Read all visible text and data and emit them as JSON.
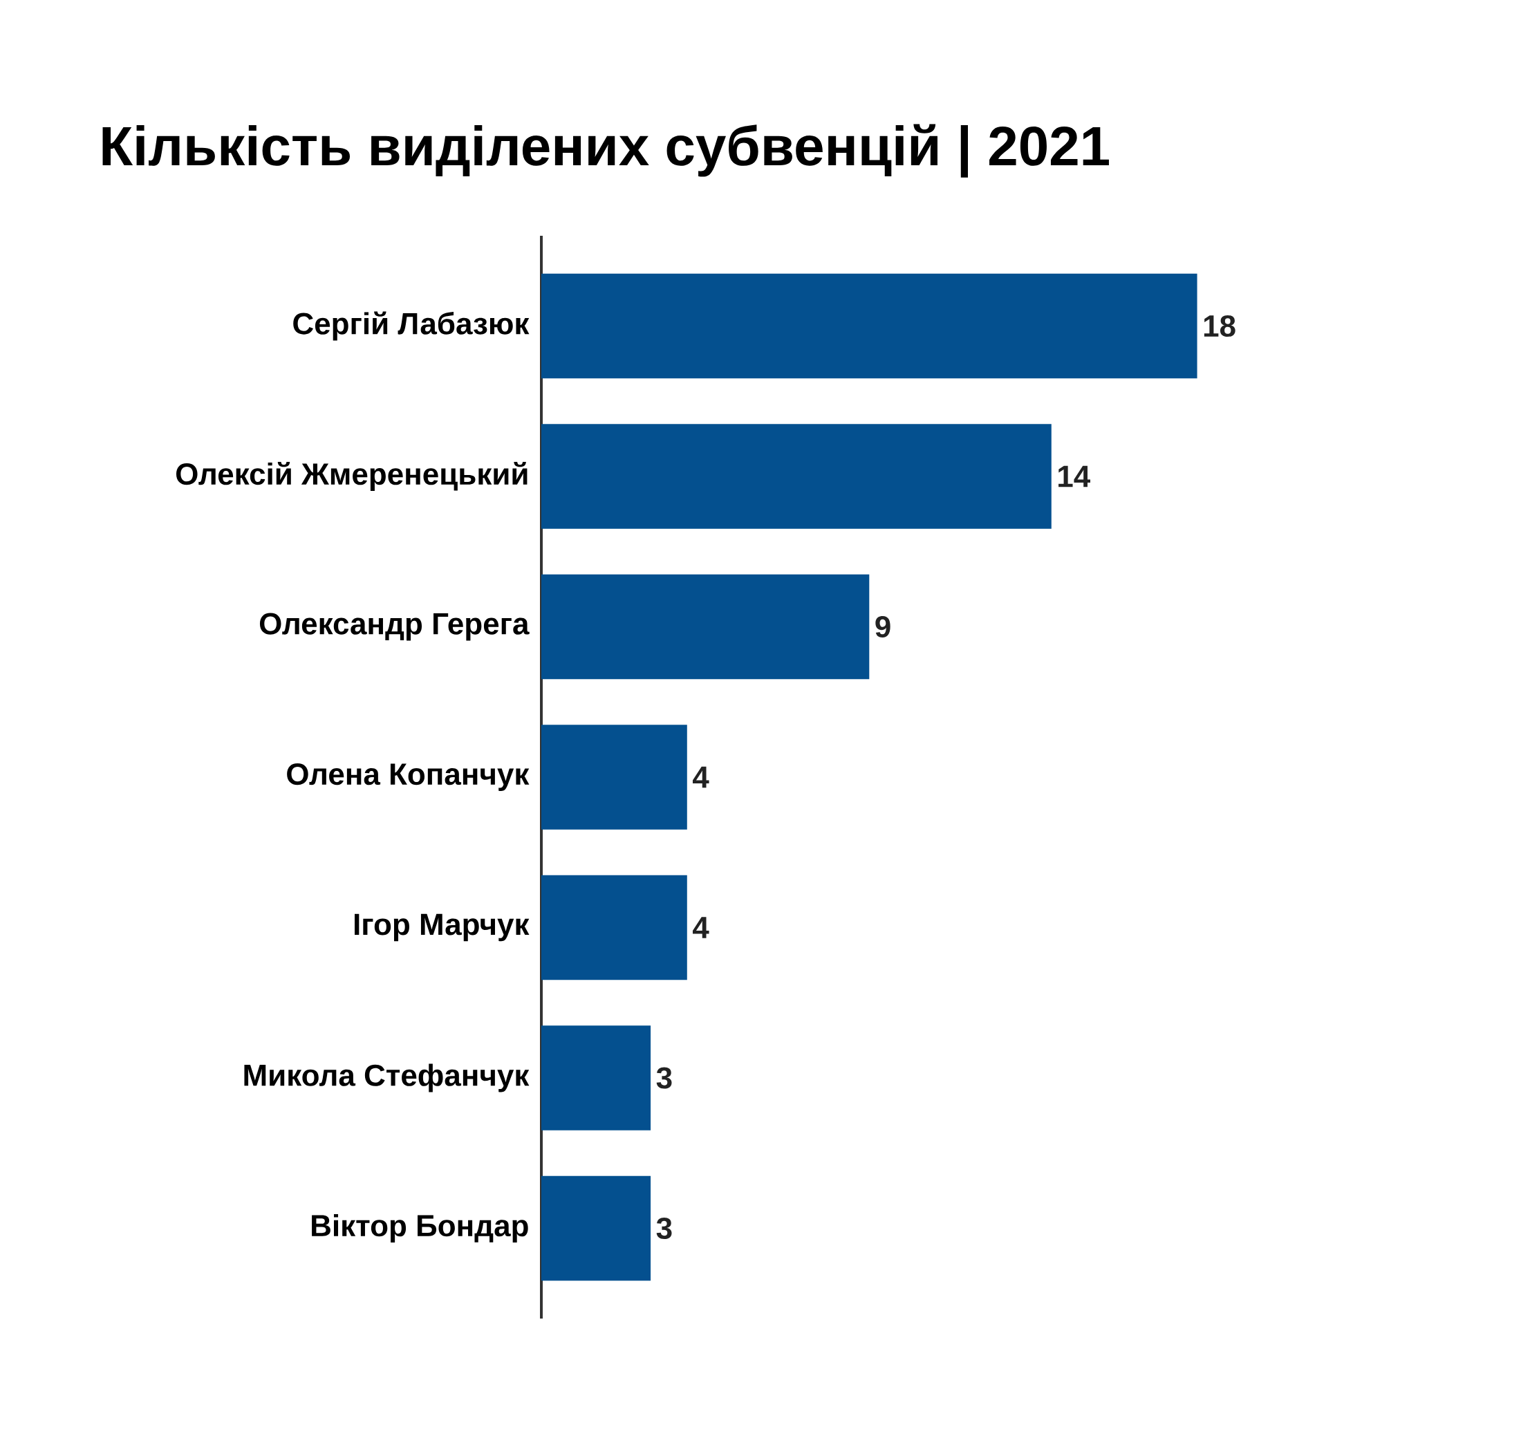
{
  "chart_data": {
    "type": "bar",
    "orientation": "horizontal",
    "title": "Кількість виділених субвенцій | 2021",
    "categories": [
      "Сергій Лабазюк",
      "Олексій Жмеренецький",
      "Олександр Герега",
      "Олена Копанчук",
      "Ігор Марчук",
      "Микола Стефанчук",
      "Віктор Бондар"
    ],
    "values": [
      18,
      14,
      9,
      4,
      4,
      3,
      3
    ],
    "color": "#04508f",
    "data_labels": true
  }
}
